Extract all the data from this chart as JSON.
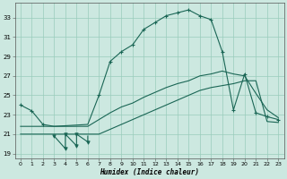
{
  "xlabel": "Humidex (Indice chaleur)",
  "bg_color": "#cce8e0",
  "grid_color": "#99ccbb",
  "line_color": "#1a6655",
  "xlim": [
    -0.5,
    23.5
  ],
  "ylim": [
    18.5,
    34.5
  ],
  "yticks": [
    19,
    21,
    23,
    25,
    27,
    29,
    31,
    33
  ],
  "xticks": [
    0,
    1,
    2,
    3,
    4,
    5,
    6,
    7,
    8,
    9,
    10,
    11,
    12,
    13,
    14,
    15,
    16,
    17,
    18,
    19,
    20,
    21,
    22,
    23
  ],
  "line1_x": [
    0,
    1,
    2,
    3,
    6,
    7,
    8,
    9,
    10,
    11,
    12,
    13,
    14,
    15,
    16,
    17,
    18,
    19,
    20,
    21,
    22,
    23
  ],
  "line1_y": [
    24.0,
    23.4,
    22.0,
    21.8,
    22.0,
    25.0,
    28.5,
    29.5,
    30.2,
    31.8,
    32.5,
    33.2,
    33.5,
    33.8,
    33.2,
    32.8,
    29.5,
    23.5,
    27.2,
    23.2,
    22.8,
    22.5
  ],
  "line1_marker_x": [
    0,
    1,
    2,
    7,
    8,
    9,
    10,
    11,
    12,
    13,
    14,
    15,
    16,
    17,
    18,
    19,
    20,
    21,
    22,
    23
  ],
  "line1_marker_y": [
    24.0,
    23.4,
    22.0,
    25.0,
    28.5,
    29.5,
    30.2,
    31.8,
    32.5,
    33.2,
    33.5,
    33.8,
    33.2,
    32.8,
    29.5,
    23.5,
    27.2,
    23.2,
    22.8,
    22.5
  ],
  "line2_x": [
    0,
    1,
    2,
    3,
    4,
    5,
    6,
    7,
    8,
    9,
    10,
    11,
    12,
    13,
    14,
    15,
    16,
    17,
    18,
    19,
    20,
    21,
    22,
    23
  ],
  "line2_y": [
    21.0,
    21.0,
    21.0,
    21.0,
    21.0,
    21.0,
    21.0,
    21.0,
    21.5,
    22.0,
    22.5,
    23.0,
    23.5,
    24.0,
    24.5,
    25.0,
    25.5,
    25.8,
    26.0,
    26.2,
    26.5,
    26.5,
    22.3,
    22.2
  ],
  "line3_x": [
    0,
    1,
    2,
    3,
    4,
    5,
    6,
    7,
    8,
    9,
    10,
    11,
    12,
    13,
    14,
    15,
    16,
    17,
    18,
    19,
    20,
    21,
    22,
    23
  ],
  "line3_y": [
    21.8,
    21.8,
    21.8,
    21.8,
    21.8,
    21.8,
    21.8,
    22.5,
    23.2,
    23.8,
    24.2,
    24.8,
    25.3,
    25.8,
    26.2,
    26.5,
    27.0,
    27.2,
    27.5,
    27.2,
    27.0,
    25.2,
    23.5,
    22.7
  ],
  "zigzag_x": [
    3,
    4,
    4,
    5,
    5,
    6,
    6
  ],
  "zigzag_y": [
    20.8,
    19.5,
    21.0,
    19.8,
    21.0,
    20.2,
    20.8
  ],
  "zigzag_marker_x": [
    3,
    4,
    4,
    5,
    5,
    6
  ],
  "zigzag_marker_y": [
    20.8,
    19.5,
    21.0,
    19.8,
    21.0,
    20.2
  ]
}
